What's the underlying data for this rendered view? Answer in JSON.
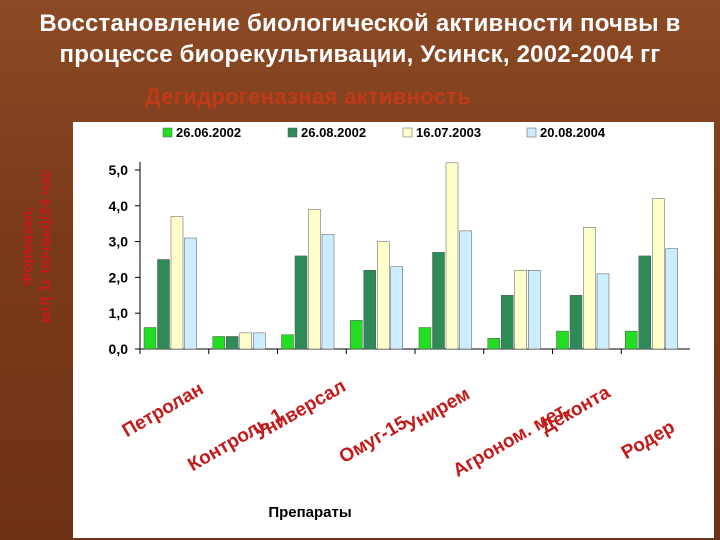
{
  "title": "Восстановление биологической активности почвы в процессе биорекультивации, Усинск, 2002-2004 гг",
  "subtitle": "Дегидрогеназная активность",
  "chart_data": {
    "type": "bar",
    "categories": [
      "Петролан",
      "Контроль 1",
      "Универсал",
      "Омуг-15",
      "Унирем",
      "Агроном. мет.",
      "Деконта",
      "Родер"
    ],
    "series": [
      {
        "name": "26.06.2002",
        "color": "#22dd22",
        "values": [
          0.6,
          0.35,
          0.4,
          0.8,
          0.6,
          0.3,
          0.5,
          0.5
        ]
      },
      {
        "name": "26.08.2002",
        "color": "#2e8b57",
        "values": [
          2.5,
          0.35,
          2.6,
          2.2,
          2.7,
          1.5,
          1.5,
          2.6
        ]
      },
      {
        "name": "16.07.2003",
        "color": "#ffffcc",
        "values": [
          3.7,
          0.45,
          3.9,
          3.0,
          5.2,
          2.2,
          3.4,
          4.2
        ]
      },
      {
        "name": "20.08.2004",
        "color": "#ccecff",
        "values": [
          3.1,
          0.45,
          3.2,
          2.3,
          3.3,
          2.2,
          2.1,
          2.8
        ]
      }
    ],
    "yticks": [
      "0,0",
      "1,0",
      "2,0",
      "3,0",
      "4,0",
      "5,0"
    ],
    "ylim": [
      0,
      5.0
    ],
    "ylabel": "Формазан, мг/( 1г почвы)/24 час",
    "xlabel": "Препараты",
    "grid": false,
    "legend_position": "top"
  }
}
